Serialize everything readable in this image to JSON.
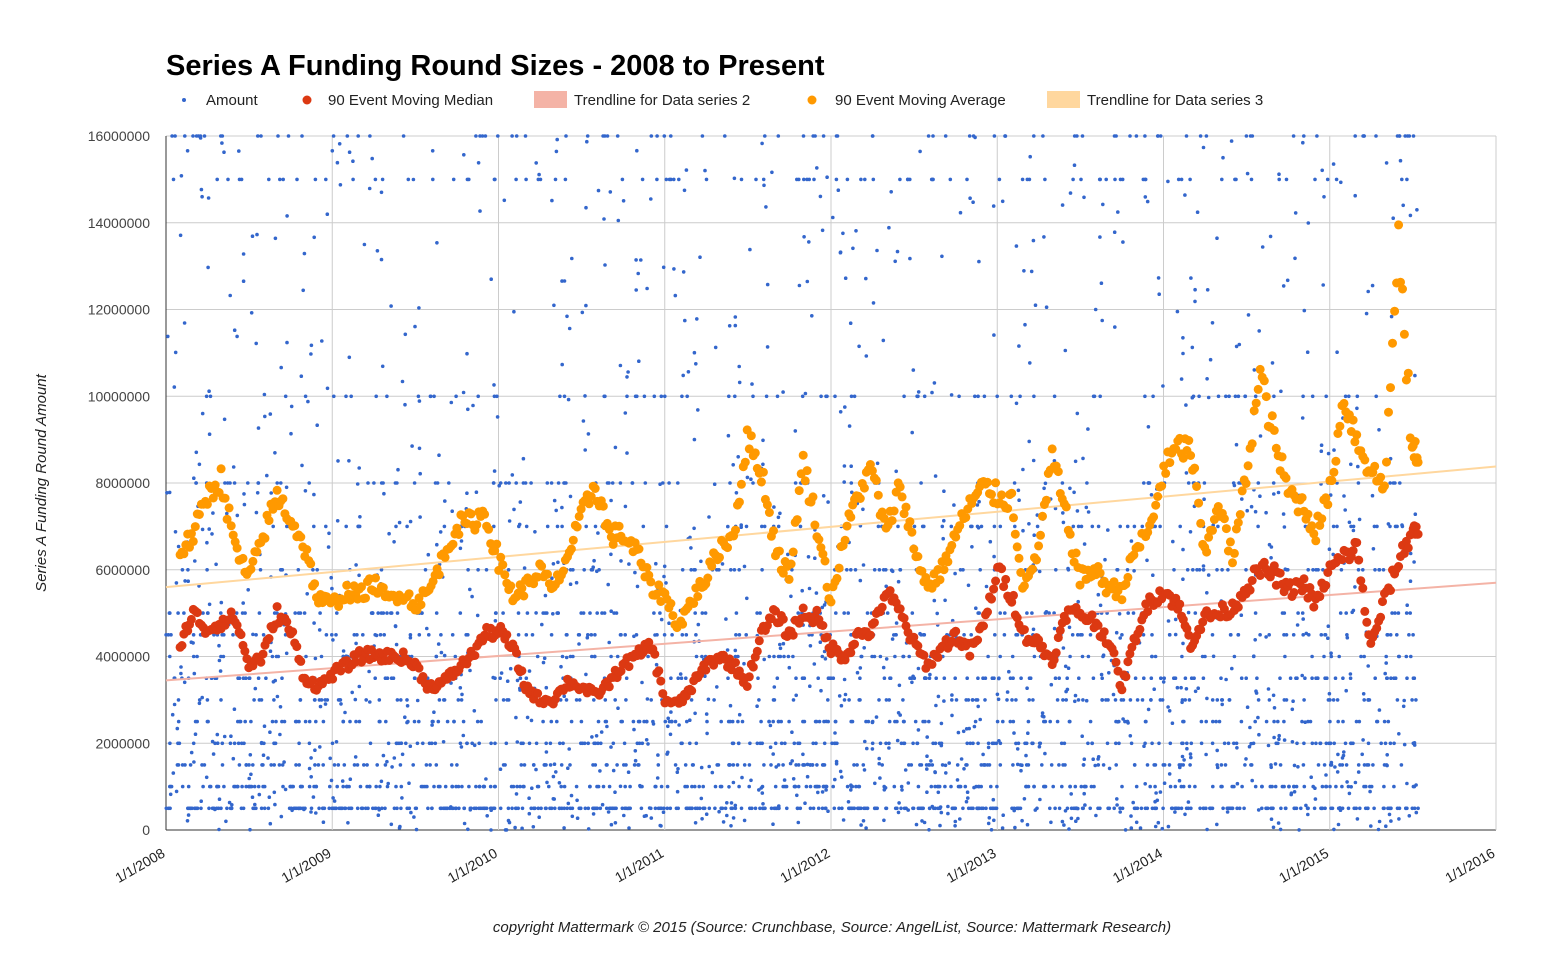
{
  "chart_data": {
    "type": "scatter",
    "title": "Series A Funding Round Sizes - 2008 to Present",
    "xlabel": "",
    "ylabel": "Series A Funding Round Amount",
    "source_note": "copyright Mattermark © 2015 (Source:  Crunchbase, Source:  AngelList, Source: Mattermark Research)",
    "xlim": [
      "2008-01-01",
      "2016-01-01"
    ],
    "ylim": [
      0,
      16000000
    ],
    "x_ticks": [
      "1/1/2008",
      "1/1/2009",
      "1/1/2010",
      "1/1/2011",
      "1/1/2012",
      "1/1/2013",
      "1/1/2014",
      "1/1/2015",
      "1/1/2016"
    ],
    "y_ticks": [
      "0",
      "2000000",
      "4000000",
      "6000000",
      "8000000",
      "10000000",
      "12000000",
      "14000000",
      "16000000"
    ],
    "grid": true,
    "legend_position": "top",
    "legend": [
      {
        "label": "Amount",
        "marker": "dot-small",
        "color": "#3366cc"
      },
      {
        "label": "90 Event Moving Median",
        "marker": "dot",
        "color": "#dc3912"
      },
      {
        "label": "Trendline for Data series 2",
        "marker": "rect",
        "color": "#f4b3a6"
      },
      {
        "label": "90 Event Moving Average",
        "marker": "dot",
        "color": "#ff9900"
      },
      {
        "label": "Trendline for Data series 3",
        "marker": "rect",
        "color": "#ffd79e"
      }
    ],
    "series": [
      {
        "name": "Amount",
        "type": "scatter",
        "color": "#3366cc",
        "note": "several thousand individual rounds; y-values concentrate at round numbers",
        "common_levels": [
          500000,
          1000000,
          1500000,
          2000000,
          2500000,
          3000000,
          3500000,
          4000000,
          4500000,
          5000000,
          6000000,
          7000000,
          8000000,
          10000000,
          15000000,
          16000000
        ],
        "x_range": [
          "2008-01-01",
          "2015-07-15"
        ]
      },
      {
        "name": "90 Event Moving Median",
        "type": "line-dots",
        "color": "#dc3912",
        "x": [
          "2008-02-01",
          "2008-03-01",
          "2008-04-01",
          "2008-05-01",
          "2008-06-01",
          "2008-07-01",
          "2008-08-01",
          "2008-09-01",
          "2008-10-01",
          "2008-11-01",
          "2008-12-01",
          "2009-01-01",
          "2009-02-01",
          "2009-03-01",
          "2009-04-01",
          "2009-05-01",
          "2009-06-01",
          "2009-07-01",
          "2009-08-01",
          "2009-09-01",
          "2009-10-01",
          "2009-11-01",
          "2009-12-01",
          "2010-01-01",
          "2010-02-01",
          "2010-03-01",
          "2010-04-01",
          "2010-05-01",
          "2010-06-01",
          "2010-07-01",
          "2010-08-01",
          "2010-09-01",
          "2010-10-01",
          "2010-11-01",
          "2010-12-01",
          "2011-01-01",
          "2011-02-01",
          "2011-03-01",
          "2011-04-01",
          "2011-05-01",
          "2011-06-01",
          "2011-07-01",
          "2011-08-01",
          "2011-09-01",
          "2011-10-01",
          "2011-11-01",
          "2011-12-01",
          "2012-01-01",
          "2012-02-01",
          "2012-03-01",
          "2012-04-01",
          "2012-05-01",
          "2012-06-01",
          "2012-07-01",
          "2012-08-01",
          "2012-09-01",
          "2012-10-01",
          "2012-11-01",
          "2012-12-01",
          "2013-01-01",
          "2013-02-01",
          "2013-03-01",
          "2013-04-01",
          "2013-05-01",
          "2013-06-01",
          "2013-07-01",
          "2013-08-01",
          "2013-09-01",
          "2013-10-01",
          "2013-11-01",
          "2013-12-01",
          "2014-01-01",
          "2014-02-01",
          "2014-03-01",
          "2014-04-01",
          "2014-05-01",
          "2014-06-01",
          "2014-07-01",
          "2014-08-01",
          "2014-09-01",
          "2014-10-01",
          "2014-11-01",
          "2014-12-01",
          "2015-01-01",
          "2015-02-01",
          "2015-03-01",
          "2015-04-01",
          "2015-05-01",
          "2015-06-01",
          "2015-07-01"
        ],
        "y": [
          4300000,
          5000000,
          4600000,
          4800000,
          4900000,
          3800000,
          4000000,
          5000000,
          4600000,
          3500000,
          3300000,
          3600000,
          3800000,
          4000000,
          4050000,
          4000000,
          4000000,
          3800000,
          3300000,
          3400000,
          3700000,
          4000000,
          4500000,
          4600000,
          4200000,
          3300000,
          3000000,
          3000000,
          3400000,
          3300000,
          3100000,
          3400000,
          3800000,
          4000000,
          4300000,
          3000000,
          2900000,
          3300000,
          3800000,
          4000000,
          3800000,
          3400000,
          4500000,
          5000000,
          4500000,
          5000000,
          4900000,
          4200000,
          4000000,
          4500000,
          4600000,
          5500000,
          5000000,
          4300000,
          3800000,
          4200000,
          4500000,
          4100000,
          4700000,
          6000000,
          5400000,
          4500000,
          4300000,
          3900000,
          5000000,
          5000000,
          4800000,
          4400000,
          3300000,
          4500000,
          5300000,
          5500000,
          5200000,
          4300000,
          4900000,
          5000000,
          5100000,
          5600000,
          6000000,
          5900000,
          5500000,
          5700000,
          5200000,
          6000000,
          6300000,
          6500000,
          4200000,
          5300000,
          6200000,
          6900000
        ]
      },
      {
        "name": "Trendline for Data series 2",
        "type": "trendline",
        "color": "#f4b3a6",
        "x": [
          "2008-01-01",
          "2016-01-01"
        ],
        "y": [
          3450000,
          5700000
        ]
      },
      {
        "name": "90 Event Moving Average",
        "type": "line-dots",
        "color": "#ff9900",
        "x": [
          "2008-02-01",
          "2008-03-01",
          "2008-04-01",
          "2008-05-01",
          "2008-06-01",
          "2008-07-01",
          "2008-08-01",
          "2008-09-01",
          "2008-10-01",
          "2008-11-01",
          "2008-12-01",
          "2009-01-01",
          "2009-02-01",
          "2009-03-01",
          "2009-04-01",
          "2009-05-01",
          "2009-06-01",
          "2009-07-01",
          "2009-08-01",
          "2009-09-01",
          "2009-10-01",
          "2009-11-01",
          "2009-12-01",
          "2010-01-01",
          "2010-02-01",
          "2010-03-01",
          "2010-04-01",
          "2010-05-01",
          "2010-06-01",
          "2010-07-01",
          "2010-08-01",
          "2010-09-01",
          "2010-10-01",
          "2010-11-01",
          "2010-12-01",
          "2011-01-01",
          "2011-02-01",
          "2011-03-01",
          "2011-04-01",
          "2011-05-01",
          "2011-06-01",
          "2011-07-01",
          "2011-08-01",
          "2011-09-01",
          "2011-10-01",
          "2011-11-01",
          "2011-12-01",
          "2012-01-01",
          "2012-02-01",
          "2012-03-01",
          "2012-04-01",
          "2012-05-01",
          "2012-06-01",
          "2012-07-01",
          "2012-08-01",
          "2012-09-01",
          "2012-10-01",
          "2012-11-01",
          "2012-12-01",
          "2013-01-01",
          "2013-02-01",
          "2013-03-01",
          "2013-04-01",
          "2013-05-01",
          "2013-06-01",
          "2013-07-01",
          "2013-08-01",
          "2013-09-01",
          "2013-10-01",
          "2013-11-01",
          "2013-12-01",
          "2014-01-01",
          "2014-02-01",
          "2014-03-01",
          "2014-04-01",
          "2014-05-01",
          "2014-06-01",
          "2014-07-01",
          "2014-08-01",
          "2014-09-01",
          "2014-10-01",
          "2014-11-01",
          "2014-12-01",
          "2015-01-01",
          "2015-02-01",
          "2015-03-01",
          "2015-04-01",
          "2015-05-01",
          "2015-06-01",
          "2015-07-01"
        ],
        "y": [
          6400000,
          6800000,
          7700000,
          8100000,
          6500000,
          5800000,
          6800000,
          7700000,
          7200000,
          6500000,
          5300000,
          5200000,
          5500000,
          5400000,
          5700000,
          5300000,
          5500000,
          5200000,
          5500000,
          6300000,
          7000000,
          7100000,
          7300000,
          6200000,
          5400000,
          5600000,
          6000000,
          5500000,
          6300000,
          7200000,
          8000000,
          6800000,
          6800000,
          6400000,
          5600000,
          5400000,
          4700000,
          5300000,
          5800000,
          6500000,
          6800000,
          9000000,
          8300000,
          6500000,
          5800000,
          8500000,
          7000000,
          5300000,
          6800000,
          7800000,
          8300000,
          6800000,
          8000000,
          6500000,
          5600000,
          6000000,
          6800000,
          7500000,
          7900000,
          7700000,
          7600000,
          5500000,
          6500000,
          8600000,
          7200000,
          5800000,
          6000000,
          5600000,
          5500000,
          6500000,
          6900000,
          8300000,
          8800000,
          8800000,
          6300000,
          7600000,
          6200000,
          8200000,
          10500000,
          9000000,
          7800000,
          7500000,
          6900000,
          7800000,
          10000000,
          9000000,
          8300000,
          7900000,
          13500000,
          8700000
        ]
      },
      {
        "name": "Trendline for Data series 3",
        "type": "trendline",
        "color": "#ffd79e",
        "x": [
          "2008-01-01",
          "2016-01-01"
        ],
        "y": [
          5600000,
          8380000
        ]
      }
    ]
  }
}
